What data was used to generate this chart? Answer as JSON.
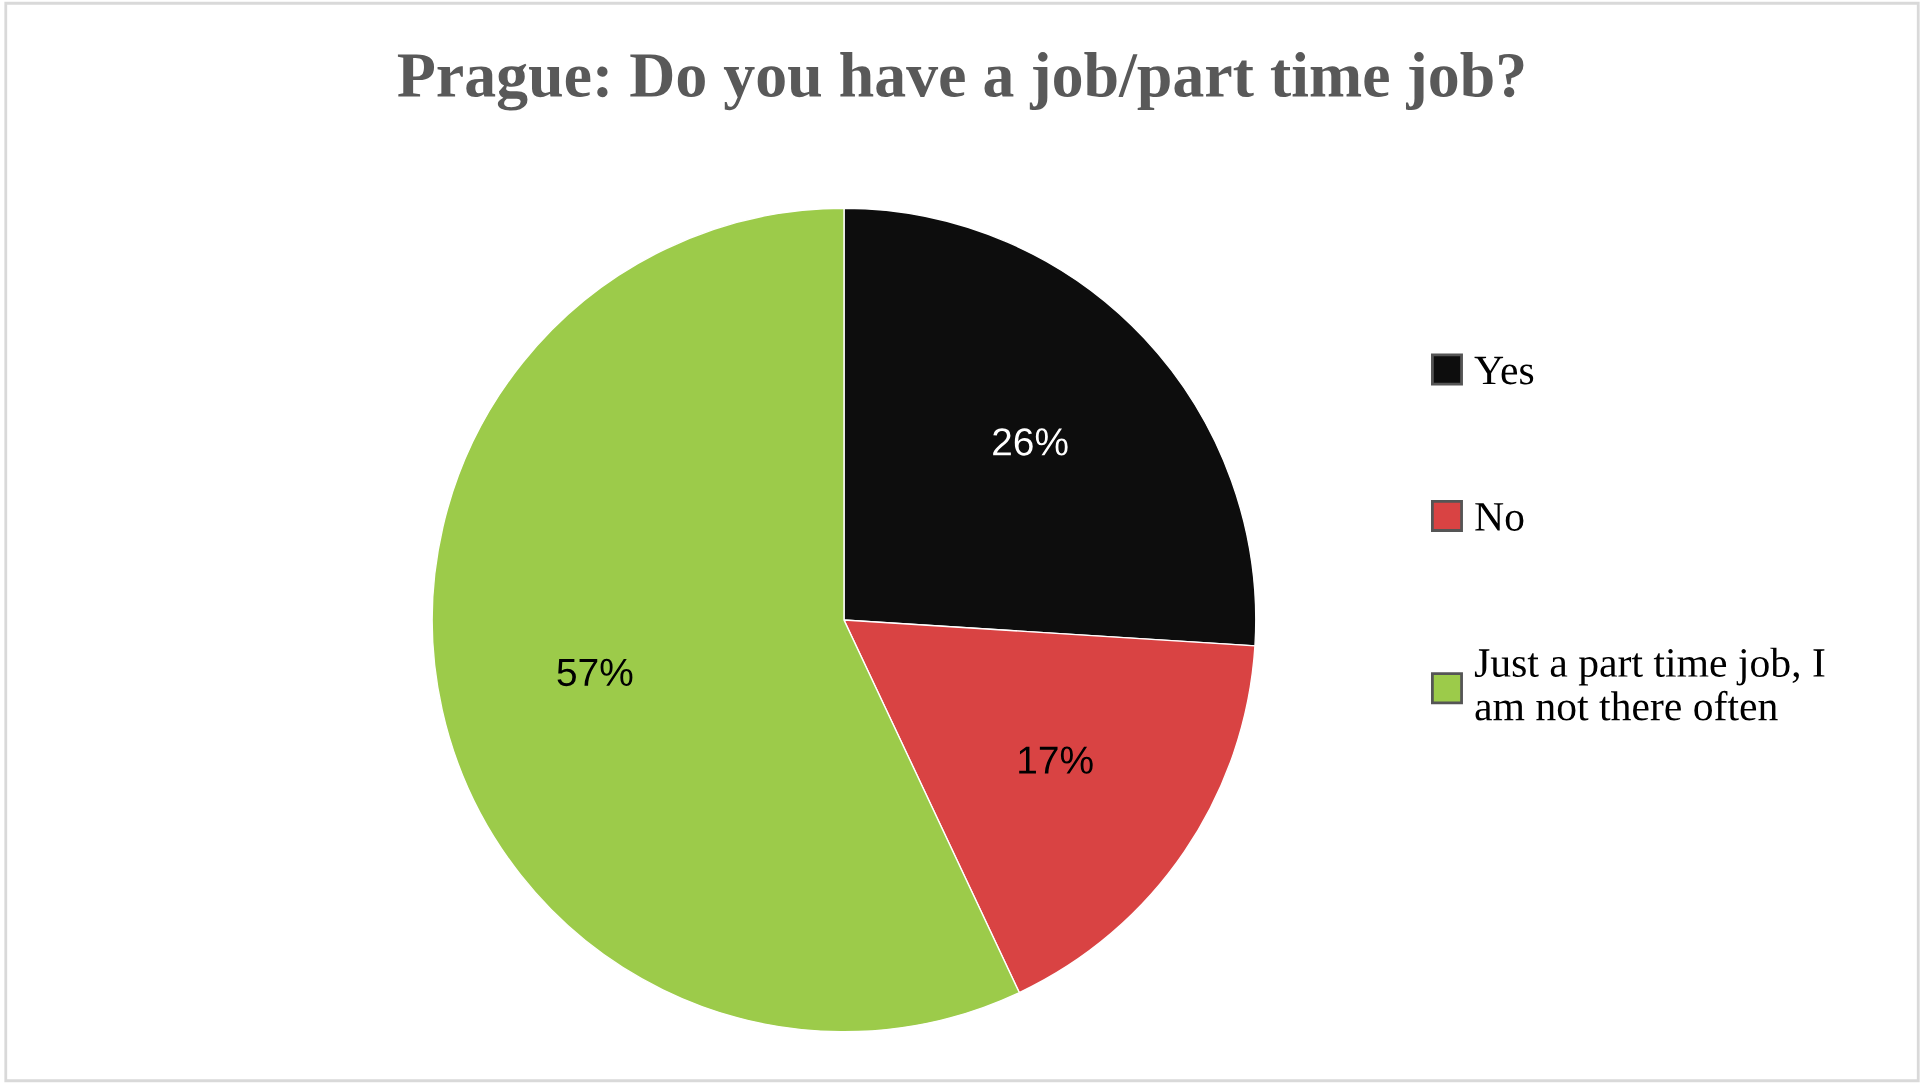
{
  "chart_data": {
    "type": "pie",
    "title": "Prague: Do you have a job/part time job?",
    "categories": [
      "Yes",
      "No",
      "Just a part time job, I\nam not there often"
    ],
    "values": [
      26,
      17,
      57
    ],
    "value_labels": [
      "26%",
      "17%",
      "57%"
    ],
    "colors": [
      "#0d0d0d",
      "#d94343",
      "#9ccb4a"
    ],
    "legend": "right"
  }
}
